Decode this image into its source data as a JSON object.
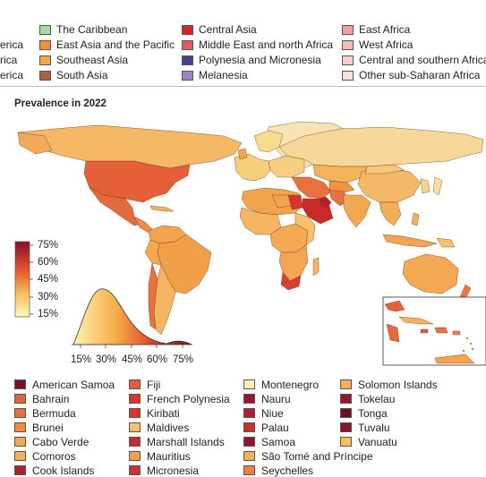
{
  "region_legend": [
    {
      "label": "The Caribbean",
      "color": "#a6dba0"
    },
    {
      "label": "East Asia and the Pacific",
      "color": "#f08c3a"
    },
    {
      "label": "Southeast Asia",
      "color": "#f4a64a"
    },
    {
      "label": "South Asia",
      "color": "#a8643a"
    },
    {
      "label": "Central Asia",
      "color": "#d7242c"
    },
    {
      "label": "Middle East and north Africa",
      "color": "#e55a5a"
    },
    {
      "label": "Polynesia and Micronesia",
      "color": "#4b3d8f"
    },
    {
      "label": "Melanesia",
      "color": "#9a83c6"
    },
    {
      "label": "East Africa",
      "color": "#f2a0a0"
    },
    {
      "label": "West Africa",
      "color": "#f7b8b8"
    },
    {
      "label": "Central and southern Africa",
      "color": "#f9cccc"
    },
    {
      "label": "Other sub-Saharan Africa",
      "color": "#fde0dd"
    },
    {
      "label": "erica",
      "color": ""
    },
    {
      "label": "rica",
      "color": ""
    },
    {
      "label": "erica",
      "color": ""
    }
  ],
  "map_title": "Prevalence in 2022",
  "color_scale": {
    "ticks": [
      "75%",
      "60%",
      "45%",
      "30%",
      "15%"
    ]
  },
  "density_axis": {
    "ticks": [
      "15%",
      "30%",
      "45%",
      "60%",
      "75%"
    ]
  },
  "small_states": [
    {
      "label": "American Samoa",
      "color": "#7a0f2a"
    },
    {
      "label": "Bahrain",
      "color": "#e0653a"
    },
    {
      "label": "Bermuda",
      "color": "#e2723e"
    },
    {
      "label": "Brunei",
      "color": "#f08c3a"
    },
    {
      "label": "Cabo Verde",
      "color": "#f6a64c"
    },
    {
      "label": "Comoros",
      "color": "#f6b25a"
    },
    {
      "label": "Cook Islands",
      "color": "#b01e2e"
    },
    {
      "label": "Fiji",
      "color": "#e65c3a"
    },
    {
      "label": "French Polynesia",
      "color": "#d8352e"
    },
    {
      "label": "Kiribati",
      "color": "#d8352e"
    },
    {
      "label": "Maldives",
      "color": "#f7c26a"
    },
    {
      "label": "Marshall Islands",
      "color": "#c52a30"
    },
    {
      "label": "Mauritius",
      "color": "#f3a04c"
    },
    {
      "label": "Micronesia",
      "color": "#d23030"
    },
    {
      "label": "Montenegro",
      "color": "#fdf0b0"
    },
    {
      "label": "Nauru",
      "color": "#9a1530"
    },
    {
      "label": "Niue",
      "color": "#b01e36"
    },
    {
      "label": "Palau",
      "color": "#c83030"
    },
    {
      "label": "Samoa",
      "color": "#8e1430"
    },
    {
      "label": "São Tomé and Príncipe",
      "color": "#f6b25a"
    },
    {
      "label": "Seychelles",
      "color": "#ee8040"
    },
    {
      "label": "Solomon Islands",
      "color": "#f6ae55"
    },
    {
      "label": "Tokelau",
      "color": "#98152e"
    },
    {
      "label": "Tonga",
      "color": "#6e0c26"
    },
    {
      "label": "Tuvalu",
      "color": "#8e1430"
    },
    {
      "label": "Vanuatu",
      "color": "#f7c058"
    }
  ]
}
